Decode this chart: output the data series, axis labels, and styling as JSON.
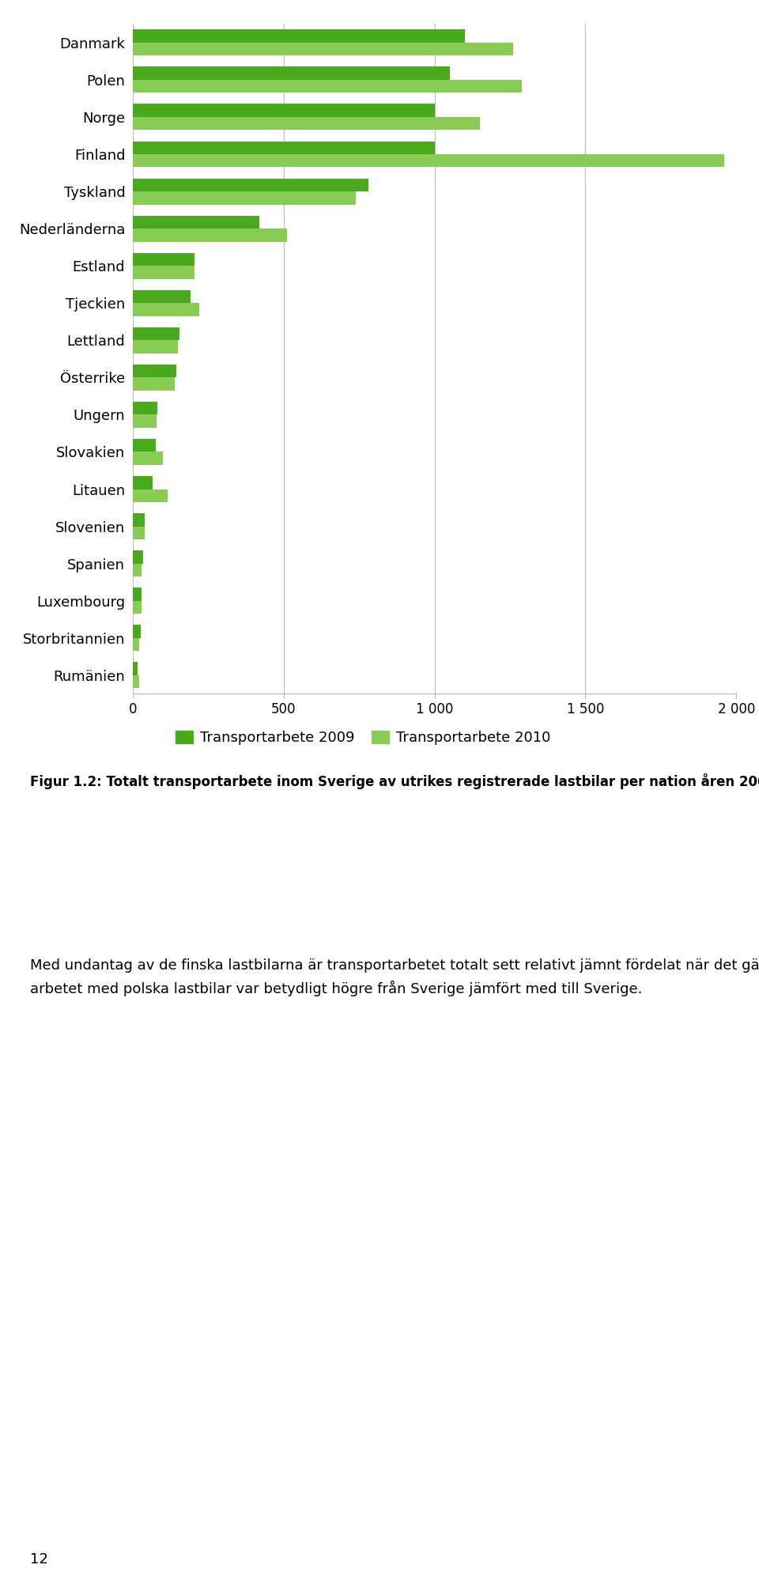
{
  "categories": [
    "Danmark",
    "Polen",
    "Norge",
    "Finland",
    "Tyskland",
    "Nederländerna",
    "Estland",
    "Tjeckien",
    "Lettland",
    "Österrike",
    "Ungern",
    "Slovakien",
    "Litauen",
    "Slovenien",
    "Spanien",
    "Luxembourg",
    "Storbritannien",
    "Rumänien"
  ],
  "values_2009": [
    1100,
    1050,
    1000,
    1000,
    780,
    420,
    205,
    190,
    155,
    145,
    80,
    75,
    65,
    40,
    35,
    28,
    25,
    15
  ],
  "values_2010": [
    1260,
    1290,
    1150,
    1960,
    740,
    510,
    205,
    220,
    150,
    140,
    78,
    100,
    115,
    38,
    30,
    28,
    22,
    20
  ],
  "color_2009": "#4aaa1e",
  "color_2010": "#88cc55",
  "legend_2009": "Transportarbete 2009",
  "legend_2010": "Transportarbete 2010",
  "xlim": [
    0,
    2000
  ],
  "xticks": [
    0,
    500,
    1000,
    1500,
    2000
  ],
  "xtick_labels": [
    "0",
    "500",
    "1 000",
    "1 500",
    "2 000"
  ],
  "background_color": "#ffffff",
  "grid_color": "#bbbbbb",
  "page_number": "12"
}
